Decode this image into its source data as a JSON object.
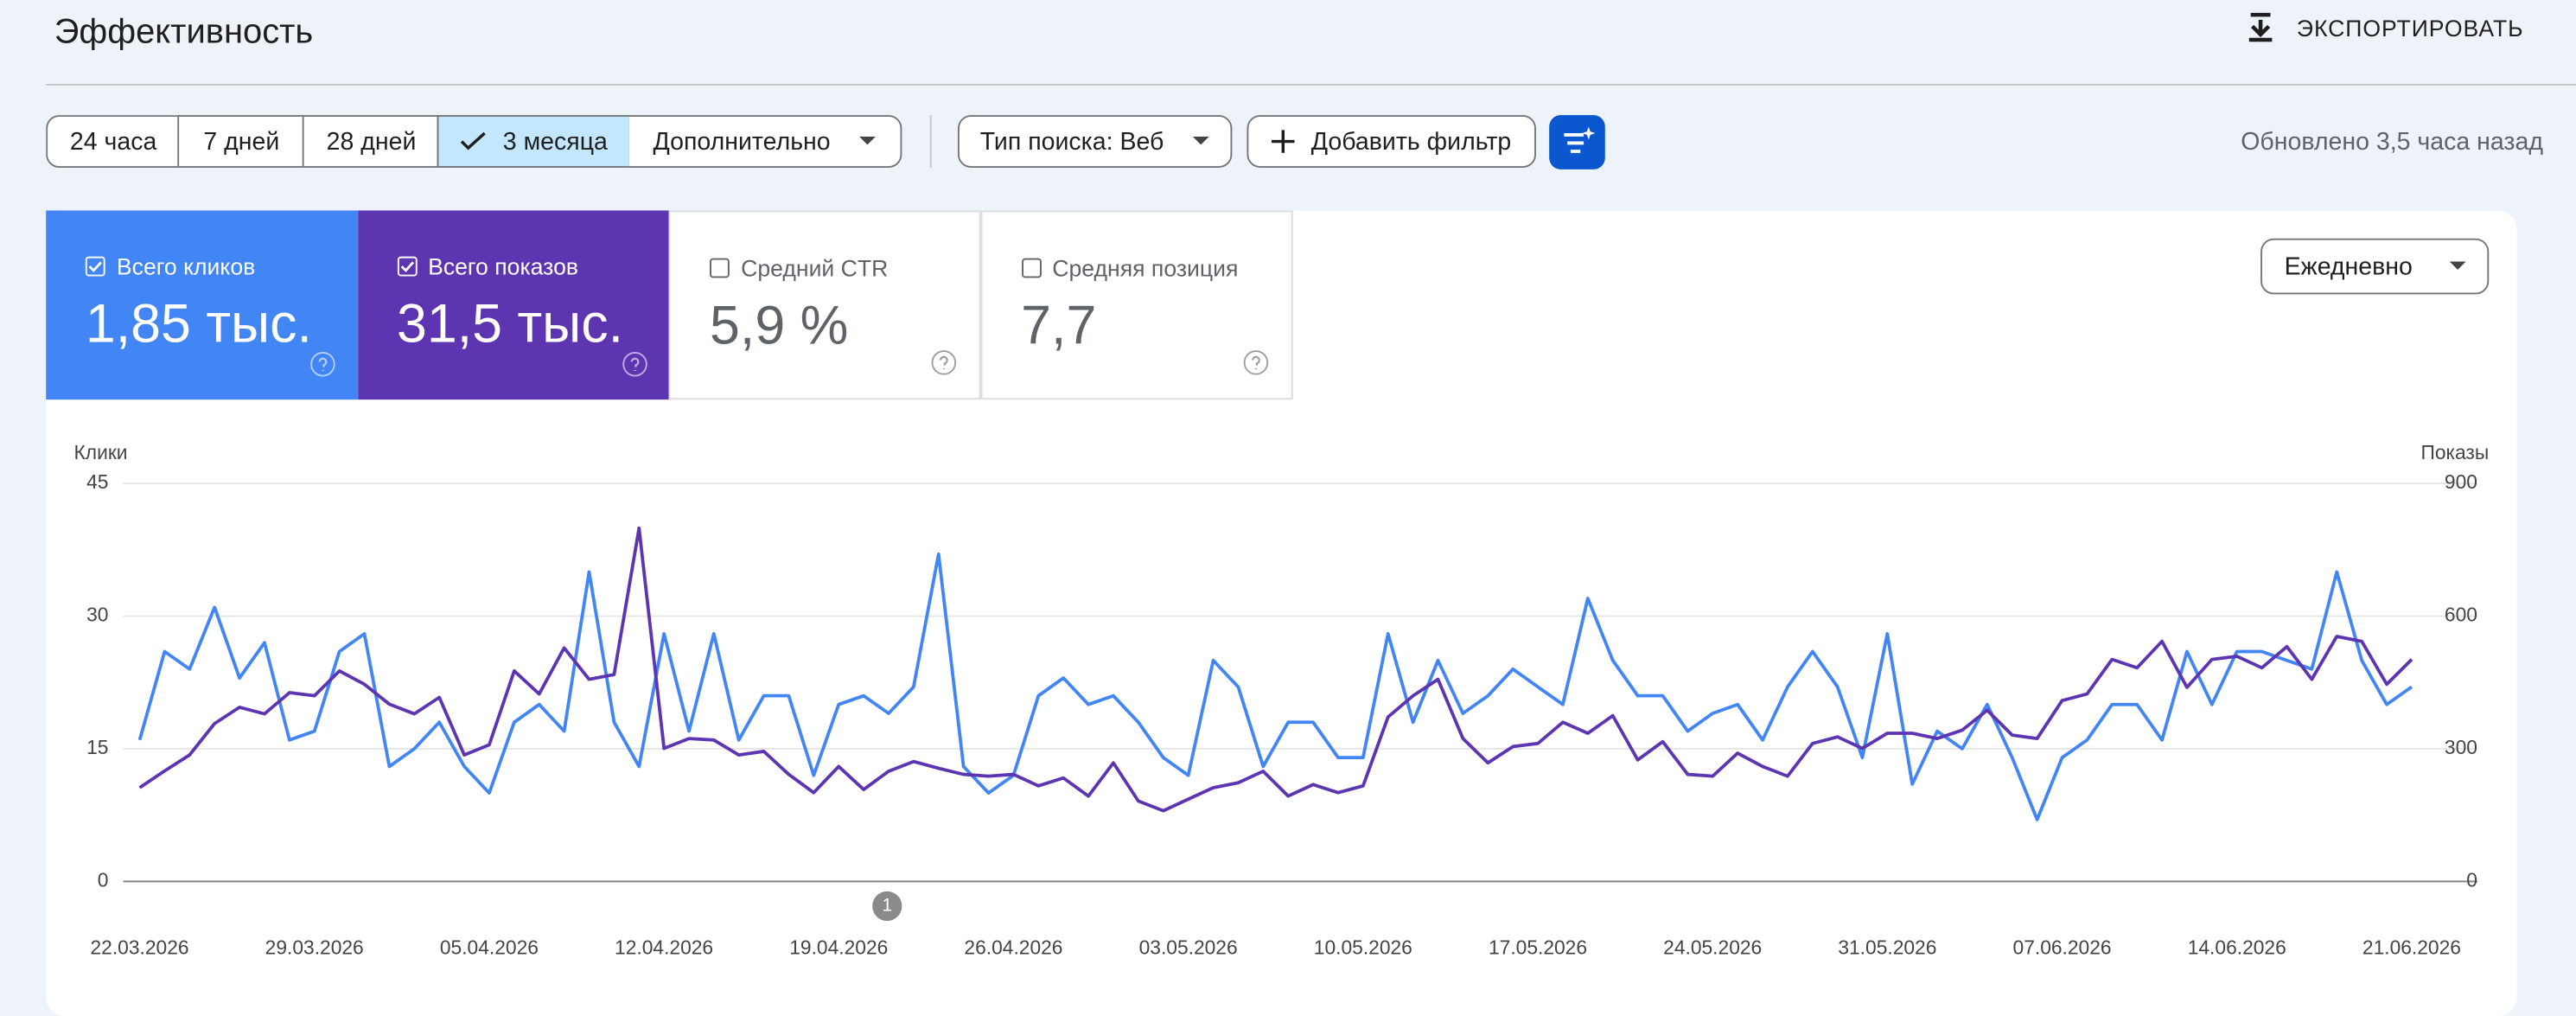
{
  "header": {
    "title": "Эффективность",
    "export": "ЭКСПОРТИРОВАТЬ"
  },
  "filters": {
    "date_ranges": [
      {
        "label": "24 часа",
        "active": false
      },
      {
        "label": "7 дней",
        "active": false
      },
      {
        "label": "28 дней",
        "active": false
      },
      {
        "label": "3 месяца",
        "active": true
      }
    ],
    "more": "Дополнительно",
    "search_type": "Тип поиска: Веб",
    "add_filter": "Добавить фильтр",
    "updated": "Обновлено 3,5 часа назад"
  },
  "metrics": [
    {
      "label": "Всего кликов",
      "value": "1,85 тыс.",
      "checked": true,
      "color": "#4285f4"
    },
    {
      "label": "Всего показов",
      "value": "31,5 тыс.",
      "checked": true,
      "color": "#5e35b1"
    },
    {
      "label": "Средний CTR",
      "value": "5,9 %",
      "checked": false,
      "color": "#ffffff"
    },
    {
      "label": "Средняя позиция",
      "value": "7,7",
      "checked": false,
      "color": "#ffffff"
    }
  ],
  "granularity": "Ежедневно",
  "chart_data": {
    "type": "line",
    "y_label": "Клики",
    "y2_label": "Показы",
    "annotation": "1",
    "categories": [
      "22.03.2026",
      null,
      null,
      null,
      null,
      null,
      null,
      "29.03.2026",
      null,
      null,
      null,
      null,
      null,
      null,
      "05.04.2026",
      null,
      null,
      null,
      null,
      null,
      null,
      "12.04.2026",
      null,
      null,
      null,
      null,
      null,
      null,
      "19.04.2026",
      null,
      null,
      null,
      null,
      null,
      null,
      "26.04.2026",
      null,
      null,
      null,
      null,
      null,
      null,
      "03.05.2026",
      null,
      null,
      null,
      null,
      null,
      null,
      "10.05.2026",
      null,
      null,
      null,
      null,
      null,
      null,
      "17.05.2026",
      null,
      null,
      null,
      null,
      null,
      null,
      "24.05.2026",
      null,
      null,
      null,
      null,
      null,
      null,
      "31.05.2026",
      null,
      null,
      null,
      null,
      null,
      null,
      "07.06.2026",
      null,
      null,
      null,
      null,
      null,
      null,
      "14.06.2026",
      null,
      null,
      null,
      null,
      null,
      null,
      "21.06.2026"
    ],
    "ylim": [
      0,
      45
    ],
    "yticks": [
      0,
      15,
      30,
      45
    ],
    "y2lim": [
      0,
      900
    ],
    "y2ticks": [
      0,
      300,
      600,
      900
    ],
    "grid": true,
    "series": [
      {
        "color": "#4285f4",
        "values": [
          16,
          26,
          24,
          31,
          23,
          27,
          16,
          17,
          26,
          28,
          13,
          15,
          18,
          13,
          10,
          18,
          20,
          17,
          35,
          18,
          13,
          28,
          17,
          28,
          16,
          21,
          21,
          12,
          20,
          21,
          19,
          22,
          37,
          13,
          10,
          12,
          21,
          23,
          20,
          21,
          18,
          14,
          12,
          25,
          22,
          13,
          18,
          18,
          14,
          14,
          28,
          18,
          25,
          19,
          21,
          24,
          22,
          20,
          32,
          25,
          21,
          21,
          17,
          19,
          20,
          16,
          22,
          26,
          22,
          14,
          28,
          11,
          17,
          15,
          20,
          14,
          7,
          14,
          16,
          20,
          20,
          16,
          26,
          20,
          26,
          26,
          25,
          24,
          35,
          25,
          20,
          22
        ]
      },
      {
        "color": "#5e35b1",
        "axis": "y2",
        "values": [
          212,
          250,
          286,
          357,
          394,
          379,
          427,
          420,
          476,
          446,
          401,
          379,
          416,
          286,
          309,
          476,
          424,
          528,
          457,
          468,
          799,
          301,
          323,
          320,
          286,
          294,
          242,
          201,
          260,
          208,
          249,
          271,
          256,
          242,
          238,
          242,
          216,
          234,
          193,
          268,
          182,
          160,
          186,
          212,
          223,
          249,
          193,
          219,
          201,
          216,
          372,
          420,
          457,
          323,
          268,
          305,
          312,
          360,
          335,
          375,
          275,
          316,
          242,
          238,
          290,
          260,
          238,
          312,
          327,
          301,
          335,
          335,
          323,
          342,
          387,
          331,
          323,
          409,
          424,
          502,
          483,
          543,
          439,
          502,
          509,
          483,
          531,
          457,
          554,
          543,
          446,
          502
        ]
      }
    ]
  }
}
